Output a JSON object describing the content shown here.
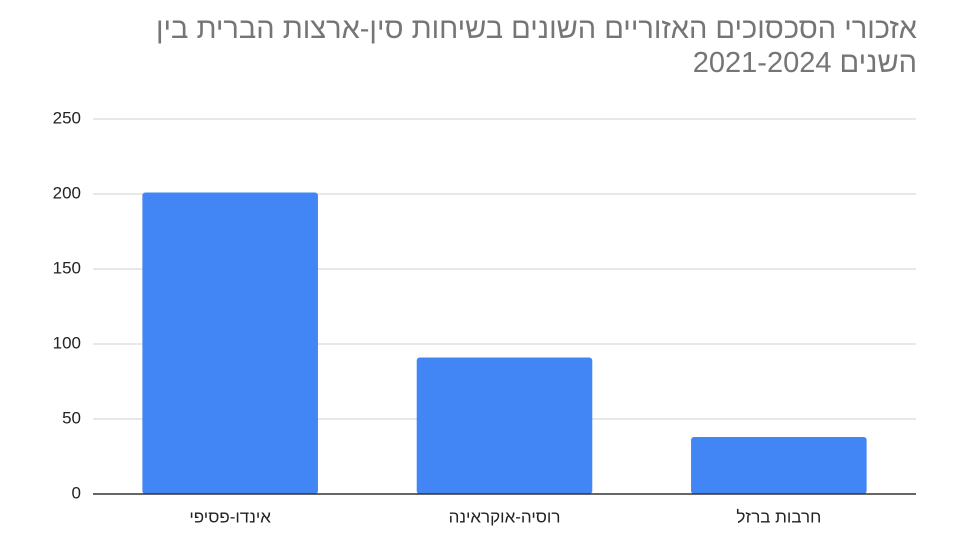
{
  "chart_data": {
    "type": "bar",
    "title": "אזכורי הסכסוכים האזוריים השונים בשיחות סין-ארצות הברית בין השנים 2021-2024",
    "categories": [
      "אינדו-פסיפי",
      "רוסיה-אוקראינה",
      "חרבות ברזל"
    ],
    "values": [
      201,
      91,
      38
    ],
    "color": "#4285f4",
    "ylim": [
      0,
      250
    ],
    "yticks": [
      0,
      50,
      100,
      150,
      200,
      250
    ],
    "grid": true
  }
}
